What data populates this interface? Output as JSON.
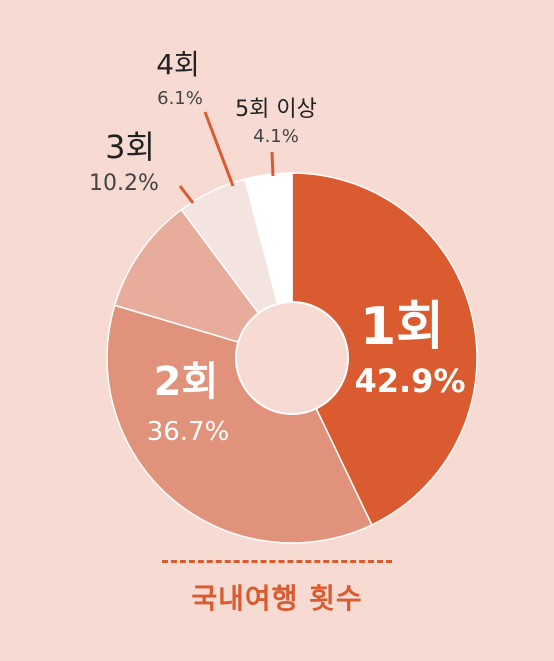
{
  "chart_data": {
    "type": "pie",
    "title": "국내여행 횟수",
    "categories": [
      "1회",
      "2회",
      "3회",
      "4회",
      "5회 이상"
    ],
    "values": [
      42.9,
      36.7,
      10.2,
      6.1,
      4.1
    ],
    "value_labels": [
      "42.9%",
      "36.7%",
      "10.2%",
      "6.1%",
      "4.1%"
    ],
    "colors": [
      "#D95B2F",
      "#E0927A",
      "#E8AC9D",
      "#F3E4E0",
      "#FFFFFF"
    ]
  },
  "colors": {
    "background": "#F7DAD2",
    "accent": "#D95B2F",
    "leader_line": "#D95B2F",
    "inside_label": "#FFFFFF",
    "outside_name": "#222222",
    "outside_pct": "#444444"
  }
}
